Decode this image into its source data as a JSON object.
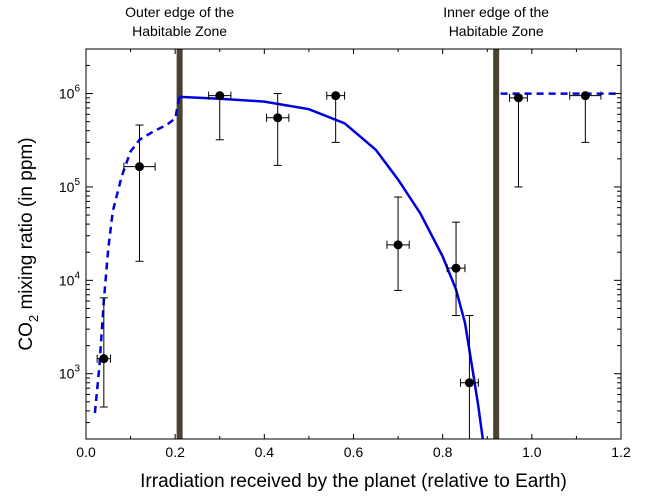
{
  "chart_data": {
    "type": "scatter",
    "xlabel": "Irradiation received by the planet (relative to Earth)",
    "ylabel_main": "CO",
    "ylabel_sub": "2",
    "ylabel_rest": " mixing ratio (in ppm)",
    "x_scale": "linear",
    "y_scale": "log",
    "xlim": [
      0.0,
      1.2
    ],
    "ylim": [
      200,
      3000000
    ],
    "x_ticks": [
      0.0,
      0.2,
      0.4,
      0.6,
      0.8,
      1.0,
      1.2
    ],
    "x_tick_labels": [
      "0.0",
      "0.2",
      "0.4",
      "0.6",
      "0.8",
      "1.0",
      "1.2"
    ],
    "y_ticks": [
      {
        "value": 1000,
        "base": "10",
        "exp": "3"
      },
      {
        "value": 10000,
        "base": "10",
        "exp": "4"
      },
      {
        "value": 100000,
        "base": "10",
        "exp": "5"
      },
      {
        "value": 1000000,
        "base": "10",
        "exp": "6"
      }
    ],
    "grid": false,
    "legend": "none",
    "colors": {
      "points": "#000000",
      "model": "#0000dd",
      "hz_lines": "#4a4230"
    },
    "habitable_zone_lines": [
      {
        "x": 0.21,
        "label_line1": "Outer edge of the",
        "label_line2": "Habitable Zone"
      },
      {
        "x": 0.92,
        "label_line1": "Inner edge of the",
        "label_line2": "Habitable Zone"
      }
    ],
    "points": [
      {
        "x": 0.04,
        "y": 1450,
        "xerr": 0.015,
        "ylow": 440,
        "yhigh": 6500
      },
      {
        "x": 0.12,
        "y": 165000,
        "xerr": 0.035,
        "ylow": 16000,
        "yhigh": 460000
      },
      {
        "x": 0.3,
        "y": 950000,
        "xerr": 0.025,
        "ylow": 320000,
        "yhigh": 950000
      },
      {
        "x": 0.43,
        "y": 550000,
        "xerr": 0.025,
        "ylow": 170000,
        "yhigh": 1000000
      },
      {
        "x": 0.56,
        "y": 950000,
        "xerr": 0.02,
        "ylow": 300000,
        "yhigh": 950000
      },
      {
        "x": 0.7,
        "y": 24000,
        "xerr": 0.025,
        "ylow": 7800,
        "yhigh": 78000
      },
      {
        "x": 0.83,
        "y": 13500,
        "xerr": 0.02,
        "ylow": 4200,
        "yhigh": 42000
      },
      {
        "x": 0.86,
        "y": 800,
        "xerr": 0.02,
        "ylow": 200,
        "yhigh": 4200
      },
      {
        "x": 0.97,
        "y": 900000,
        "xerr": 0.02,
        "ylow": 100000,
        "yhigh": 950000
      },
      {
        "x": 1.12,
        "y": 950000,
        "xerr": 0.035,
        "ylow": 300000,
        "yhigh": 950000
      }
    ],
    "model_dashed_low": [
      {
        "x": 0.02,
        "y": 380
      },
      {
        "x": 0.03,
        "y": 1200
      },
      {
        "x": 0.04,
        "y": 6000
      },
      {
        "x": 0.05,
        "y": 22000
      },
      {
        "x": 0.06,
        "y": 55000
      },
      {
        "x": 0.08,
        "y": 130000
      },
      {
        "x": 0.1,
        "y": 240000
      },
      {
        "x": 0.12,
        "y": 320000
      },
      {
        "x": 0.15,
        "y": 390000
      },
      {
        "x": 0.18,
        "y": 460000
      },
      {
        "x": 0.2,
        "y": 540000
      },
      {
        "x": 0.21,
        "y": 950000
      }
    ],
    "model_solid": [
      {
        "x": 0.21,
        "y": 920000
      },
      {
        "x": 0.3,
        "y": 880000
      },
      {
        "x": 0.4,
        "y": 820000
      },
      {
        "x": 0.5,
        "y": 680000
      },
      {
        "x": 0.58,
        "y": 480000
      },
      {
        "x": 0.65,
        "y": 250000
      },
      {
        "x": 0.7,
        "y": 120000
      },
      {
        "x": 0.75,
        "y": 52000
      },
      {
        "x": 0.8,
        "y": 18000
      },
      {
        "x": 0.83,
        "y": 8000
      },
      {
        "x": 0.85,
        "y": 3500
      },
      {
        "x": 0.87,
        "y": 900
      },
      {
        "x": 0.88,
        "y": 450
      },
      {
        "x": 0.89,
        "y": 200
      }
    ],
    "model_dashed_high": [
      {
        "x": 0.93,
        "y": 1000000
      },
      {
        "x": 1.2,
        "y": 1000000
      }
    ]
  }
}
